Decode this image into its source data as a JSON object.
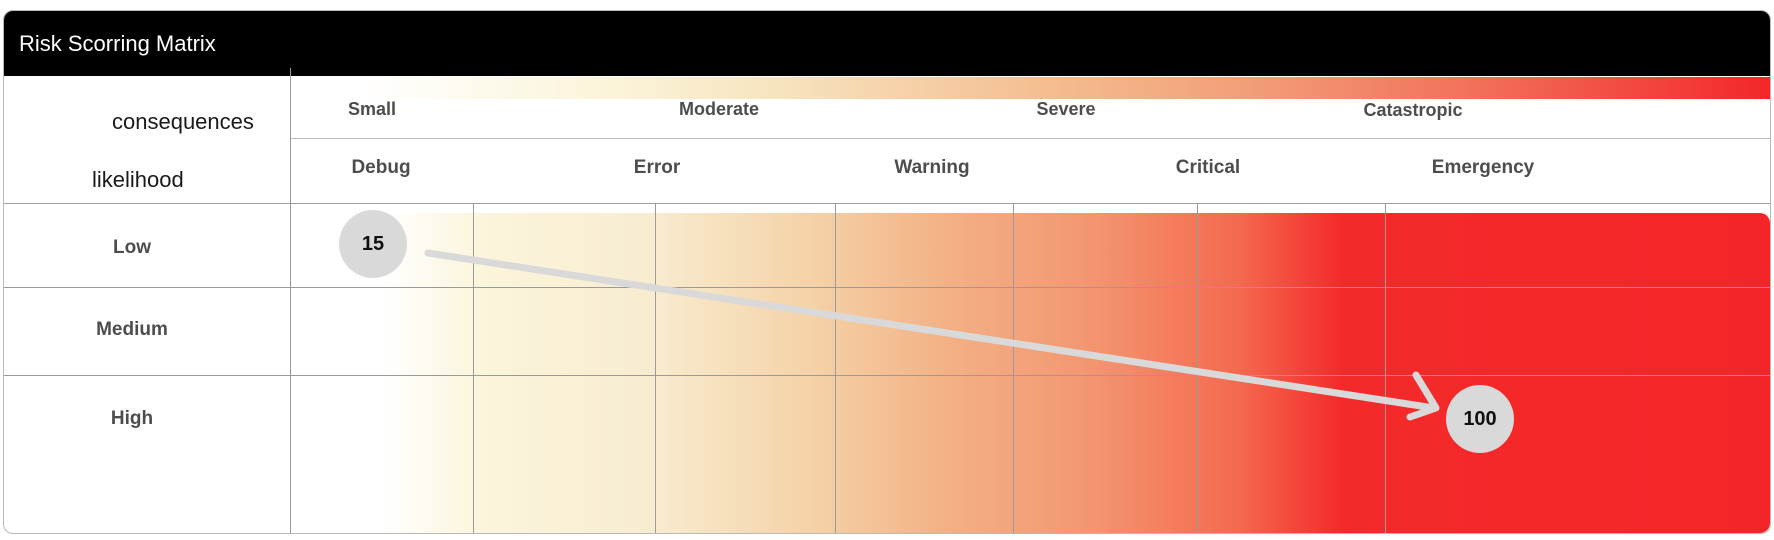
{
  "title": "Risk Scorring Matrix",
  "corner": {
    "consequences": "consequences",
    "likelihood": "likelihood"
  },
  "consequence_levels": [
    "Small",
    "Moderate",
    "Severe",
    "Catastropic"
  ],
  "log_levels": [
    "Debug",
    "Error",
    "Warning",
    "Critical",
    "Emergency"
  ],
  "likelihood_levels": [
    "Low",
    "Medium",
    "High"
  ],
  "scores": {
    "start": "15",
    "end": "100"
  },
  "colors": {
    "title_bg": "#000000",
    "low_risk": "#fbf5dc",
    "high_risk": "#f42528",
    "dot": "#d9d9d9",
    "arrow": "#d9d9d9"
  }
}
